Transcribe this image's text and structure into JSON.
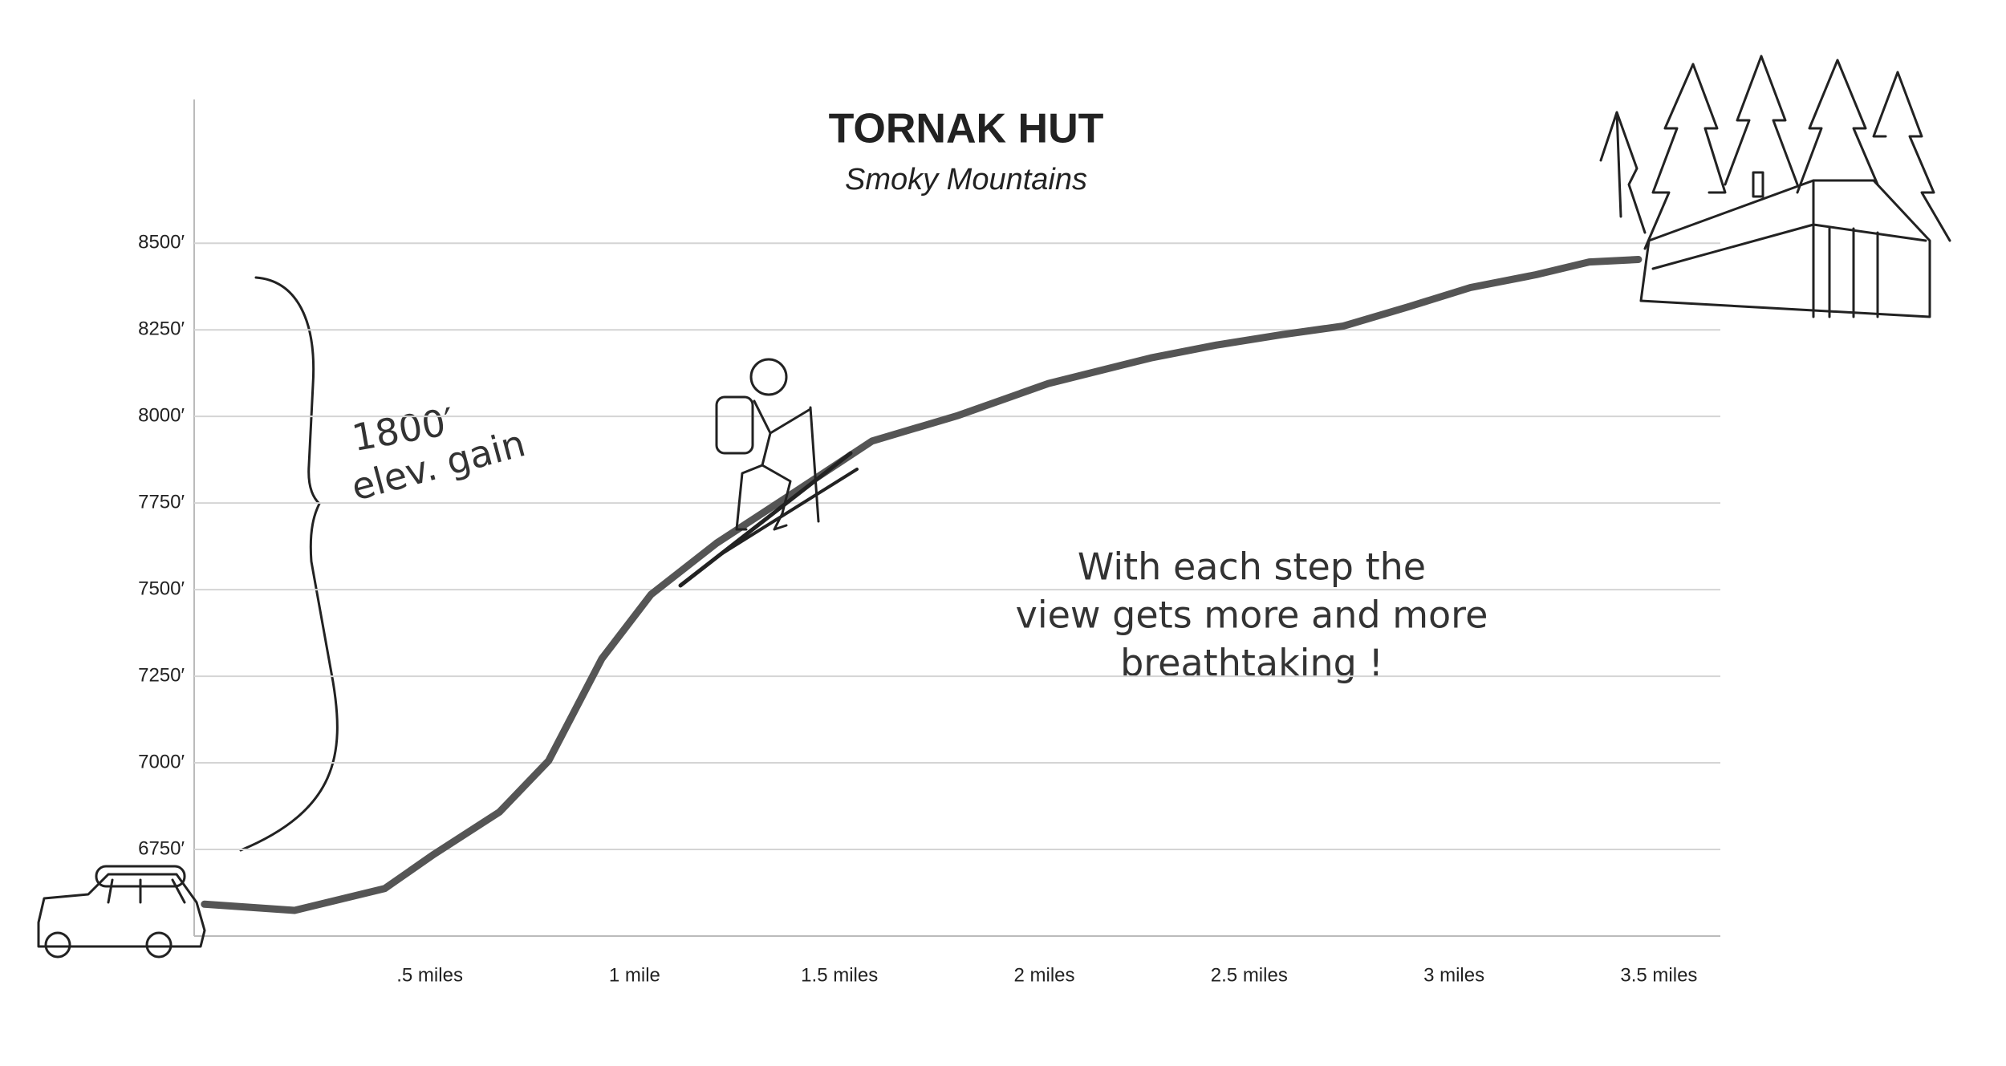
{
  "chart_data": {
    "type": "line",
    "title": "TORNAK HUT",
    "subtitle": "Smoky Mountains",
    "annotations": [
      "1800′",
      "elev. gain",
      "With each step the",
      "view gets more and more",
      "breathtaking !"
    ],
    "x": [
      -0.05,
      0.17,
      0.39,
      0.51,
      0.67,
      0.79,
      0.92,
      1.04,
      1.2,
      1.39,
      1.58,
      1.79,
      2.01,
      2.26,
      2.42,
      2.58,
      2.73,
      2.89,
      3.04,
      3.2,
      3.33,
      3.45
    ],
    "series": [
      {
        "color": "#555555",
        "values": [
          6592,
          6574,
          6637,
          6736,
          6858,
          7006,
          7301,
          7486,
          7634,
          7781,
          7929,
          8003,
          8095,
          8169,
          8206,
          8236,
          8261,
          8317,
          8372,
          8409,
          8446,
          8453
        ]
      }
    ],
    "xlim": [
      -0.075,
      3.65
    ],
    "ylim": [
      6500,
      8915
    ],
    "xticks": [
      {
        "value": 0.5,
        "label": ".5 miles"
      },
      {
        "value": 1,
        "label": "1 mile"
      },
      {
        "value": 1.5,
        "label": "1.5 miles"
      },
      {
        "value": 2,
        "label": "2 miles"
      },
      {
        "value": 2.5,
        "label": "2.5 miles"
      },
      {
        "value": 3,
        "label": "3 miles"
      },
      {
        "value": 3.5,
        "label": "3.5 miles"
      }
    ],
    "yticks": [
      {
        "value": 6750,
        "label": "6750′"
      },
      {
        "value": 7000,
        "label": "7000′"
      },
      {
        "value": 7250,
        "label": "7250′"
      },
      {
        "value": 7500,
        "label": "7500′"
      },
      {
        "value": 7750,
        "label": "7750′"
      },
      {
        "value": 8000,
        "label": "8000′"
      },
      {
        "value": 8250,
        "label": "8250′"
      },
      {
        "value": 8500,
        "label": "8500′"
      }
    ],
    "grid": true
  }
}
